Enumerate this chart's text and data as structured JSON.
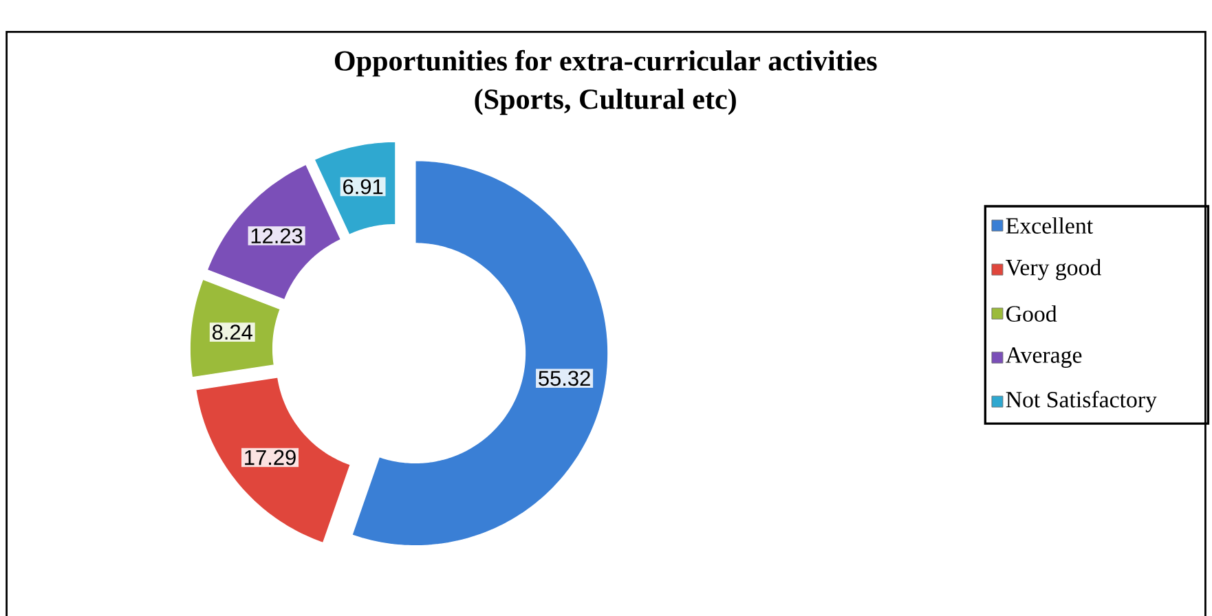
{
  "chart_data": {
    "type": "donut",
    "title": "Opportunities for extra-curricular activities",
    "subtitle": "(Sports, Cultural etc)",
    "categories": [
      "Excellent",
      "Very good",
      "Good",
      "Average",
      "Not Satisfactory"
    ],
    "values": [
      55.32,
      17.29,
      8.24,
      12.23,
      6.91
    ],
    "colors": [
      "#3a7fd5",
      "#e0463c",
      "#9bbb3a",
      "#7b4fb8",
      "#2fa8d0"
    ],
    "data_labels": true,
    "legend": "right"
  }
}
